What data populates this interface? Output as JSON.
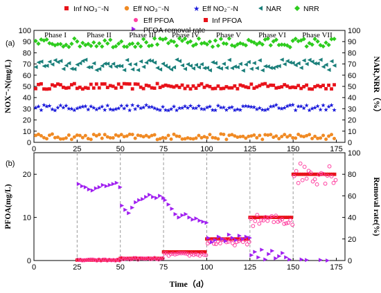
{
  "chart_data": [
    {
      "panel": "(a)",
      "type": "scatter",
      "xlim": [
        0,
        180
      ],
      "x_ticks": [
        0,
        25,
        50,
        75,
        100,
        125,
        150,
        175
      ],
      "ylabel": "NOX⁻-N(mg/L)",
      "ylim": [
        0,
        100
      ],
      "y_ticks": [
        0,
        10,
        20,
        30,
        40,
        50,
        60,
        70,
        80,
        90,
        100
      ],
      "y2label": "NAR,NRR（%）",
      "y2lim": [
        0,
        100
      ],
      "y2_ticks": [
        0,
        10,
        20,
        30,
        40,
        50,
        60,
        70,
        80,
        90,
        100
      ],
      "phases": [
        "Phase I",
        "Phase II",
        "Phase III",
        "Phase IV",
        "Phase V",
        "Phase VI",
        "Phase VII"
      ],
      "series": [
        {
          "name": "Inf NO₃⁻-N",
          "color": "#e8121a",
          "marker": "square",
          "x_range": [
            1,
            175
          ],
          "approx_level": 50,
          "noise": 2.5,
          "axis": "left"
        },
        {
          "name": "Eff NO₃⁻-N",
          "color": "#f08a24",
          "marker": "circle",
          "x_range": [
            1,
            175
          ],
          "approx_level": 5,
          "noise": 2.5,
          "axis": "left"
        },
        {
          "name": "Eff NO₂⁻-N",
          "color": "#1a1adb",
          "marker": "star",
          "x_range": [
            1,
            175
          ],
          "approx_level": 31,
          "noise": 2.5,
          "axis": "left"
        },
        {
          "name": "NAR",
          "color": "#1a7f7a",
          "marker": "tri-left",
          "x_range": [
            1,
            175
          ],
          "approx_level": 69,
          "noise": 5,
          "axis": "right"
        },
        {
          "name": "NRR",
          "color": "#2ecc1e",
          "marker": "diamond",
          "x_range": [
            1,
            175
          ],
          "approx_level": 89,
          "noise": 4,
          "axis": "right"
        }
      ]
    },
    {
      "panel": "(b)",
      "type": "scatter",
      "xlabel": "Time（d）",
      "xlim": [
        0,
        180
      ],
      "x_ticks": [
        0,
        25,
        50,
        75,
        100,
        125,
        150,
        175
      ],
      "ylabel": "PFOA(mg/L)",
      "ylim": [
        0,
        25
      ],
      "y_ticks": [
        0,
        10,
        20
      ],
      "y2label": "Removal rate(%)",
      "y2lim": [
        0,
        100
      ],
      "y2_ticks": [
        0,
        20,
        40,
        60,
        80,
        100
      ],
      "phase_boundaries": [
        25,
        50,
        75,
        100,
        125,
        150
      ],
      "series": [
        {
          "name": "Eff PFOA",
          "color": "#ff3fa0",
          "marker": "circle-open",
          "axis": "left",
          "segments": [
            [
              25,
              50,
              0.1
            ],
            [
              50,
              75,
              0.4
            ],
            [
              75,
              100,
              1.4
            ],
            [
              100,
              125,
              4.2
            ],
            [
              125,
              150,
              9.3
            ],
            [
              150,
              175,
              20.3
            ]
          ]
        },
        {
          "name": "Inf PFOA",
          "color": "#e8121a",
          "marker": "square",
          "axis": "left",
          "levels": [
            [
              25,
              50,
              0.1
            ],
            [
              50,
              75,
              0.5
            ],
            [
              75,
              100,
              2
            ],
            [
              100,
              125,
              5
            ],
            [
              125,
              150,
              10
            ],
            [
              150,
              175,
              20
            ]
          ]
        },
        {
          "name": "PFOA removal rate",
          "color": "#a020f0",
          "marker": "tri-right",
          "axis": "right",
          "points": [
            [
              26,
              71
            ],
            [
              28,
              69
            ],
            [
              30,
              68
            ],
            [
              32,
              66
            ],
            [
              34,
              65
            ],
            [
              36,
              67
            ],
            [
              38,
              68
            ],
            [
              40,
              70
            ],
            [
              42,
              69
            ],
            [
              44,
              70
            ],
            [
              46,
              71
            ],
            [
              48,
              72
            ],
            [
              50,
              68
            ],
            [
              51,
              51
            ],
            [
              53,
              47
            ],
            [
              55,
              44
            ],
            [
              57,
              49
            ],
            [
              59,
              54
            ],
            [
              61,
              56
            ],
            [
              63,
              57
            ],
            [
              65,
              59
            ],
            [
              67,
              61
            ],
            [
              69,
              59
            ],
            [
              71,
              58
            ],
            [
              73,
              60
            ],
            [
              75,
              58
            ],
            [
              76,
              56
            ],
            [
              78,
              52
            ],
            [
              80,
              48
            ],
            [
              82,
              43
            ],
            [
              84,
              40
            ],
            [
              86,
              42
            ],
            [
              88,
              43
            ],
            [
              90,
              40
            ],
            [
              92,
              38
            ],
            [
              94,
              39
            ],
            [
              96,
              37
            ],
            [
              98,
              36
            ],
            [
              100,
              35
            ],
            [
              101,
              21
            ],
            [
              103,
              17
            ],
            [
              105,
              19
            ],
            [
              107,
              22
            ],
            [
              109,
              20
            ],
            [
              111,
              18
            ],
            [
              113,
              24
            ],
            [
              115,
              21
            ],
            [
              117,
              19
            ],
            [
              119,
              23
            ],
            [
              121,
              20
            ],
            [
              123,
              22
            ],
            [
              125,
              21
            ],
            [
              126,
              5
            ],
            [
              128,
              8
            ],
            [
              130,
              3
            ],
            [
              132,
              10
            ],
            [
              134,
              1
            ],
            [
              136,
              6
            ],
            [
              138,
              9
            ],
            [
              140,
              2
            ],
            [
              142,
              4
            ],
            [
              144,
              7
            ],
            [
              146,
              3
            ],
            [
              148,
              1
            ],
            [
              155,
              1
            ],
            [
              158,
              0.5
            ],
            [
              166,
              0.5
            ],
            [
              170,
              0
            ]
          ]
        }
      ]
    }
  ]
}
